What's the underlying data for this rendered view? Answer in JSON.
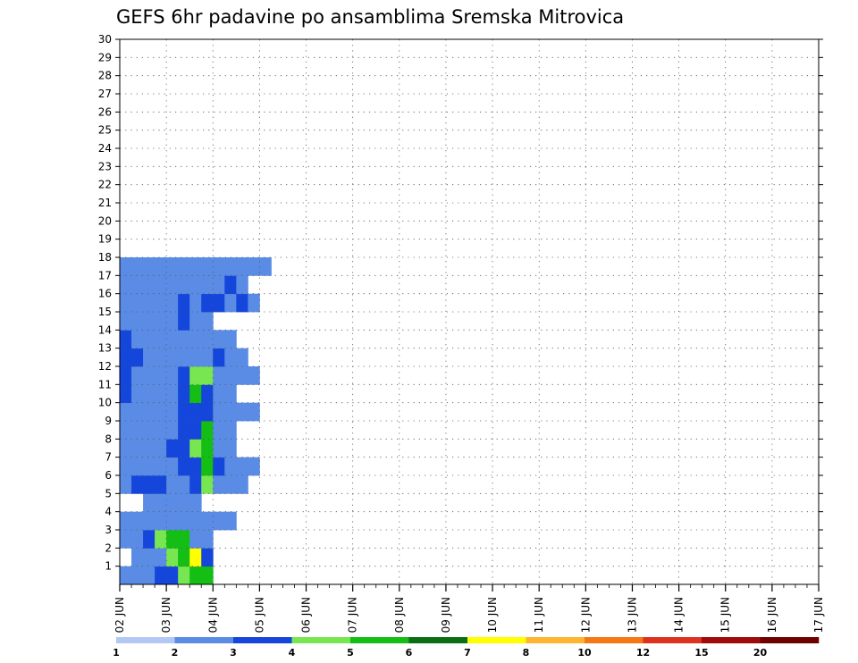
{
  "chart_data": {
    "type": "heatmap",
    "title": "GEFS 6hr padavine po ansamblima Sremska Mitrovica",
    "x_tick_labels": [
      "02 JUN",
      "03 JUN",
      "04 JUN",
      "05 JUN",
      "06 JUN",
      "07 JUN",
      "08 JUN",
      "09 JUN",
      "10 JUN",
      "11 JUN",
      "12 JUN",
      "13 JUN",
      "14 JUN",
      "15 JUN",
      "16 JUN",
      "17 JUN"
    ],
    "y_tick_labels": [
      "1",
      "2",
      "3",
      "4",
      "5",
      "6",
      "7",
      "8",
      "9",
      "10",
      "11",
      "12",
      "13",
      "14",
      "15",
      "16",
      "17",
      "18",
      "19",
      "20",
      "21",
      "22",
      "23",
      "24",
      "25",
      "26",
      "27",
      "28",
      "29",
      "30"
    ],
    "y_range": [
      0,
      30
    ],
    "x_range_days": [
      0,
      15
    ],
    "steps_per_day": 4,
    "grid": true,
    "colorbar": {
      "placement": "bottom",
      "labels": [
        "1",
        "2",
        "3",
        "4",
        "5",
        "6",
        "7",
        "8",
        "10",
        "12",
        "15",
        "20"
      ],
      "colors": [
        "#b4c8f5",
        "#5a8ce6",
        "#1446dc",
        "#78e650",
        "#14be14",
        "#0a6e14",
        "#ffff00",
        "#ffb432",
        "#f57814",
        "#dc321e",
        "#a00a0a",
        "#6e0000"
      ]
    },
    "cells": [
      [
        0,
        0,
        1
      ],
      [
        1,
        0,
        1
      ],
      [
        2,
        0,
        1
      ],
      [
        3,
        0,
        2
      ],
      [
        4,
        0,
        2
      ],
      [
        5,
        0,
        3
      ],
      [
        6,
        0,
        4
      ],
      [
        7,
        0,
        4
      ],
      [
        1,
        1,
        1
      ],
      [
        2,
        1,
        1
      ],
      [
        3,
        1,
        1
      ],
      [
        4,
        1,
        3
      ],
      [
        5,
        1,
        4
      ],
      [
        6,
        1,
        6
      ],
      [
        7,
        1,
        2
      ],
      [
        0,
        2,
        1
      ],
      [
        1,
        2,
        1
      ],
      [
        2,
        2,
        2
      ],
      [
        3,
        2,
        3
      ],
      [
        4,
        2,
        4
      ],
      [
        5,
        2,
        4
      ],
      [
        6,
        2,
        1
      ],
      [
        7,
        2,
        1
      ],
      [
        0,
        3,
        1
      ],
      [
        1,
        3,
        1
      ],
      [
        2,
        3,
        1
      ],
      [
        3,
        3,
        1
      ],
      [
        4,
        3,
        1
      ],
      [
        5,
        3,
        1
      ],
      [
        6,
        3,
        1
      ],
      [
        7,
        3,
        1
      ],
      [
        8,
        3,
        1
      ],
      [
        9,
        3,
        1
      ],
      [
        2,
        4,
        1
      ],
      [
        3,
        4,
        1
      ],
      [
        4,
        4,
        1
      ],
      [
        5,
        4,
        1
      ],
      [
        6,
        4,
        1
      ],
      [
        0,
        5,
        1
      ],
      [
        1,
        5,
        2
      ],
      [
        2,
        5,
        2
      ],
      [
        3,
        5,
        2
      ],
      [
        4,
        5,
        1
      ],
      [
        5,
        5,
        1
      ],
      [
        6,
        5,
        2
      ],
      [
        7,
        5,
        3
      ],
      [
        8,
        5,
        1
      ],
      [
        9,
        5,
        1
      ],
      [
        10,
        5,
        1
      ],
      [
        0,
        6,
        1
      ],
      [
        1,
        6,
        1
      ],
      [
        2,
        6,
        1
      ],
      [
        3,
        6,
        1
      ],
      [
        4,
        6,
        1
      ],
      [
        5,
        6,
        2
      ],
      [
        6,
        6,
        2
      ],
      [
        7,
        6,
        4
      ],
      [
        8,
        6,
        2
      ],
      [
        9,
        6,
        1
      ],
      [
        10,
        6,
        1
      ],
      [
        11,
        6,
        1
      ],
      [
        0,
        7,
        1
      ],
      [
        1,
        7,
        1
      ],
      [
        2,
        7,
        1
      ],
      [
        3,
        7,
        1
      ],
      [
        4,
        7,
        2
      ],
      [
        5,
        7,
        2
      ],
      [
        6,
        7,
        3
      ],
      [
        7,
        7,
        4
      ],
      [
        8,
        7,
        1
      ],
      [
        9,
        7,
        1
      ],
      [
        0,
        8,
        1
      ],
      [
        1,
        8,
        1
      ],
      [
        2,
        8,
        1
      ],
      [
        3,
        8,
        1
      ],
      [
        4,
        8,
        1
      ],
      [
        5,
        8,
        2
      ],
      [
        6,
        8,
        2
      ],
      [
        7,
        8,
        4
      ],
      [
        8,
        8,
        1
      ],
      [
        9,
        8,
        1
      ],
      [
        0,
        9,
        1
      ],
      [
        1,
        9,
        1
      ],
      [
        2,
        9,
        1
      ],
      [
        3,
        9,
        1
      ],
      [
        4,
        9,
        1
      ],
      [
        5,
        9,
        2
      ],
      [
        6,
        9,
        2
      ],
      [
        7,
        9,
        2
      ],
      [
        8,
        9,
        1
      ],
      [
        9,
        9,
        1
      ],
      [
        10,
        9,
        1
      ],
      [
        11,
        9,
        1
      ],
      [
        0,
        10,
        2
      ],
      [
        1,
        10,
        1
      ],
      [
        2,
        10,
        1
      ],
      [
        3,
        10,
        1
      ],
      [
        4,
        10,
        1
      ],
      [
        5,
        10,
        2
      ],
      [
        6,
        10,
        4
      ],
      [
        7,
        10,
        2
      ],
      [
        8,
        10,
        1
      ],
      [
        9,
        10,
        1
      ],
      [
        0,
        11,
        2
      ],
      [
        1,
        11,
        1
      ],
      [
        2,
        11,
        1
      ],
      [
        3,
        11,
        1
      ],
      [
        4,
        11,
        1
      ],
      [
        5,
        11,
        2
      ],
      [
        6,
        11,
        3
      ],
      [
        7,
        11,
        3
      ],
      [
        8,
        11,
        1
      ],
      [
        9,
        11,
        1
      ],
      [
        10,
        11,
        1
      ],
      [
        11,
        11,
        1
      ],
      [
        0,
        12,
        2
      ],
      [
        1,
        12,
        2
      ],
      [
        2,
        12,
        1
      ],
      [
        3,
        12,
        1
      ],
      [
        4,
        12,
        1
      ],
      [
        5,
        12,
        1
      ],
      [
        6,
        12,
        1
      ],
      [
        7,
        12,
        1
      ],
      [
        8,
        12,
        2
      ],
      [
        9,
        12,
        1
      ],
      [
        10,
        12,
        1
      ],
      [
        0,
        13,
        2
      ],
      [
        1,
        13,
        1
      ],
      [
        2,
        13,
        1
      ],
      [
        3,
        13,
        1
      ],
      [
        4,
        13,
        1
      ],
      [
        5,
        13,
        1
      ],
      [
        6,
        13,
        1
      ],
      [
        7,
        13,
        1
      ],
      [
        8,
        13,
        1
      ],
      [
        9,
        13,
        1
      ],
      [
        0,
        14,
        1
      ],
      [
        1,
        14,
        1
      ],
      [
        2,
        14,
        1
      ],
      [
        3,
        14,
        1
      ],
      [
        4,
        14,
        1
      ],
      [
        5,
        14,
        2
      ],
      [
        6,
        14,
        1
      ],
      [
        7,
        14,
        1
      ],
      [
        0,
        15,
        1
      ],
      [
        1,
        15,
        1
      ],
      [
        2,
        15,
        1
      ],
      [
        3,
        15,
        1
      ],
      [
        4,
        15,
        1
      ],
      [
        5,
        15,
        2
      ],
      [
        6,
        15,
        1
      ],
      [
        7,
        15,
        2
      ],
      [
        8,
        15,
        2
      ],
      [
        9,
        15,
        1
      ],
      [
        10,
        15,
        2
      ],
      [
        11,
        15,
        1
      ],
      [
        0,
        16,
        1
      ],
      [
        1,
        16,
        1
      ],
      [
        2,
        16,
        1
      ],
      [
        3,
        16,
        1
      ],
      [
        4,
        16,
        1
      ],
      [
        5,
        16,
        1
      ],
      [
        6,
        16,
        1
      ],
      [
        7,
        16,
        1
      ],
      [
        8,
        16,
        1
      ],
      [
        9,
        16,
        2
      ],
      [
        10,
        16,
        1
      ],
      [
        0,
        17,
        1
      ],
      [
        1,
        17,
        1
      ],
      [
        2,
        17,
        1
      ],
      [
        3,
        17,
        1
      ],
      [
        4,
        17,
        1
      ],
      [
        5,
        17,
        1
      ],
      [
        6,
        17,
        1
      ],
      [
        7,
        17,
        1
      ],
      [
        8,
        17,
        1
      ],
      [
        9,
        17,
        1
      ],
      [
        10,
        17,
        1
      ],
      [
        11,
        17,
        1
      ],
      [
        12,
        17,
        1
      ]
    ]
  }
}
